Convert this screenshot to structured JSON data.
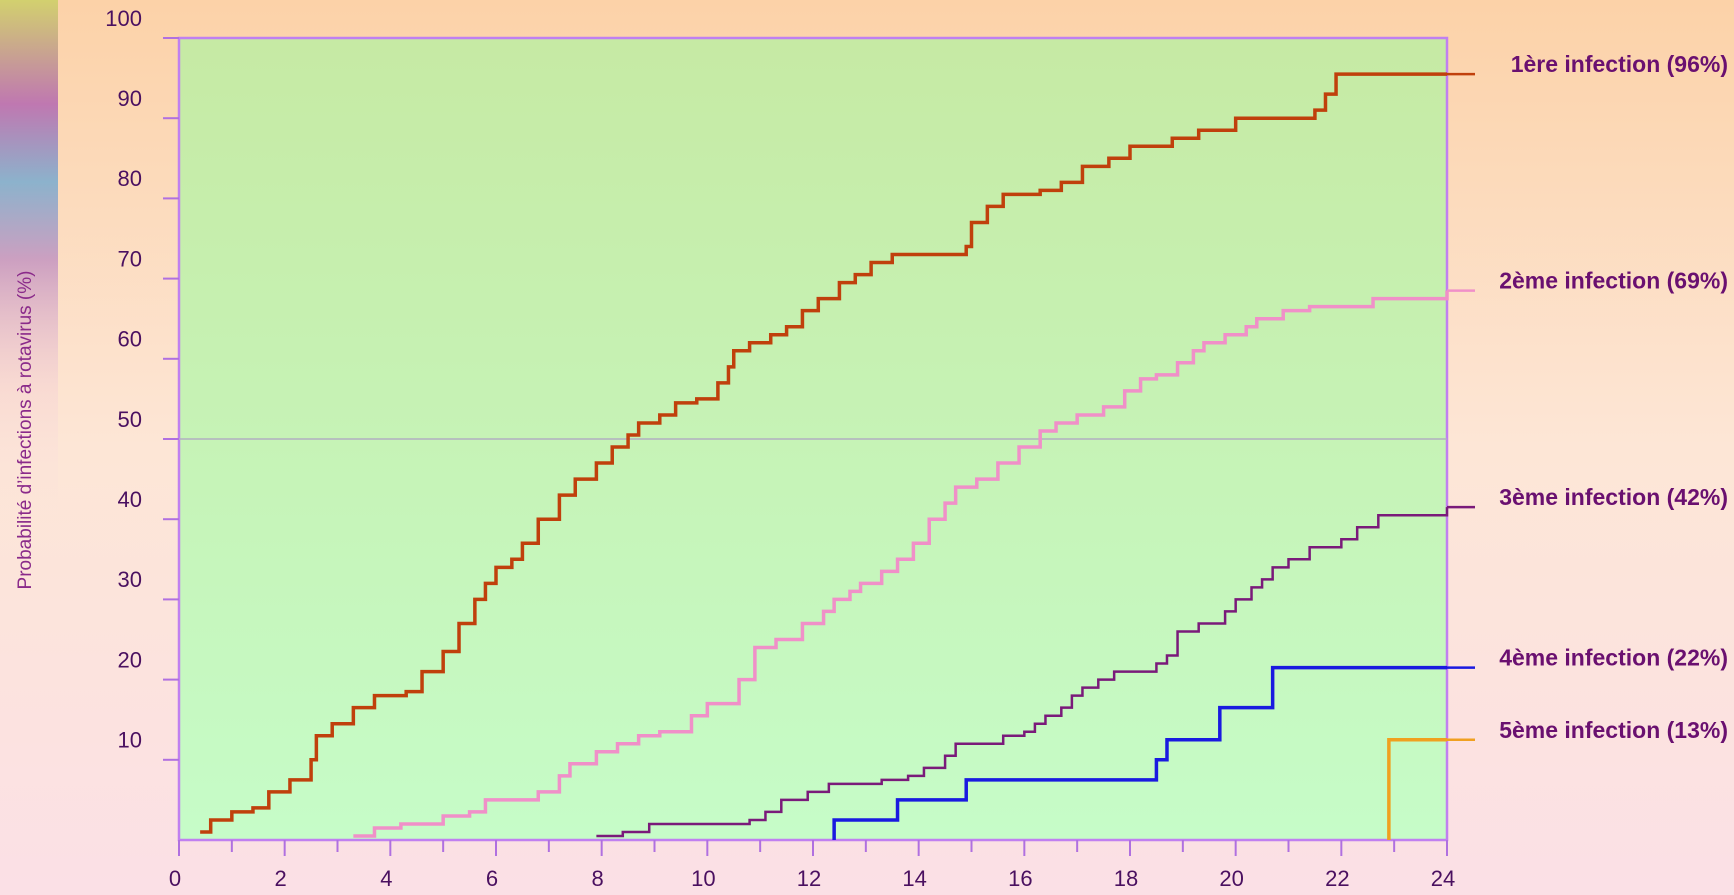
{
  "chart_data": {
    "type": "line",
    "step": true,
    "ylabel": "Probabilité d’infections à rotavirus (%)",
    "xlim": [
      0,
      24
    ],
    "xticks": [
      0,
      2,
      4,
      6,
      8,
      10,
      12,
      14,
      16,
      18,
      20,
      22,
      24
    ],
    "xticks_minor": [
      1,
      3,
      5,
      7,
      9,
      11,
      13,
      15,
      17,
      19,
      21,
      23
    ],
    "ylim": [
      0,
      100
    ],
    "yticks": [
      10,
      20,
      30,
      40,
      50,
      60,
      70,
      80,
      90,
      100
    ],
    "hline": 50,
    "series": [
      {
        "name": "1ère infection (96%)",
        "color": "#c0400c",
        "x": [
          0.4,
          0.6,
          1.0,
          1.4,
          1.7,
          2.1,
          2.5,
          2.6,
          2.9,
          3.3,
          3.7,
          4.3,
          4.6,
          5.0,
          5.3,
          5.6,
          5.8,
          6.0,
          6.3,
          6.5,
          6.8,
          7.2,
          7.5,
          7.9,
          8.2,
          8.5,
          8.7,
          9.1,
          9.4,
          9.8,
          10.2,
          10.4,
          10.5,
          10.8,
          11.2,
          11.5,
          11.8,
          12.1,
          12.5,
          12.8,
          13.1,
          13.5,
          14.3,
          14.9,
          15.0,
          15.3,
          15.6,
          16.3,
          16.7,
          17.1,
          17.6,
          18.0,
          18.8,
          19.3,
          20.0,
          21.5,
          21.7,
          21.9,
          24
        ],
        "values": [
          1,
          2.5,
          3.5,
          4,
          6,
          7.5,
          10,
          13,
          14.5,
          16.5,
          18,
          18.5,
          21,
          23.5,
          27,
          30,
          32,
          34,
          35,
          37,
          40,
          43,
          45,
          47,
          49,
          50.5,
          52,
          53,
          54.5,
          55,
          57,
          59,
          61,
          62,
          63,
          64,
          66,
          67.5,
          69.5,
          70.5,
          72,
          73,
          73,
          74,
          77,
          79,
          80.5,
          81,
          82,
          84,
          85,
          86.5,
          87.5,
          88.5,
          90,
          91,
          93,
          95.5,
          95.5
        ]
      },
      {
        "name": "2ème infection (69%)",
        "color": "#f090c8",
        "x": [
          3.3,
          3.7,
          4.2,
          5.0,
          5.5,
          5.8,
          6.8,
          7.2,
          7.4,
          7.9,
          8.3,
          8.7,
          9.1,
          9.7,
          10.0,
          10.4,
          10.6,
          10.9,
          11.3,
          11.8,
          12.2,
          12.4,
          12.7,
          12.9,
          13.3,
          13.6,
          13.9,
          14.2,
          14.5,
          14.7,
          15.1,
          15.5,
          15.9,
          16.3,
          16.6,
          17.0,
          17.5,
          17.9,
          18.2,
          18.5,
          18.9,
          19.2,
          19.4,
          19.8,
          20.2,
          20.4,
          20.9,
          21.4,
          22.6,
          24
        ],
        "values": [
          0.5,
          1.5,
          2,
          3,
          3.5,
          5,
          6,
          8,
          9.5,
          11,
          12,
          13,
          13.5,
          15.5,
          17,
          17,
          20,
          24,
          25,
          27,
          28.5,
          30,
          31,
          32,
          33.5,
          35,
          37,
          40,
          42,
          44,
          45,
          47,
          49,
          51,
          52,
          53,
          54,
          56,
          57.5,
          58,
          59.5,
          61,
          62,
          63,
          64,
          65,
          66,
          66.5,
          67.5,
          68.5
        ]
      },
      {
        "name": "3ème infection (42%)",
        "color": "#7a1a7a",
        "x": [
          7.9,
          8.4,
          8.9,
          10.8,
          11.1,
          11.4,
          11.9,
          12.3,
          13.3,
          13.8,
          14.1,
          14.5,
          14.7,
          15.6,
          16.0,
          16.2,
          16.4,
          16.7,
          16.9,
          17.1,
          17.4,
          17.7,
          18.5,
          18.7,
          18.9,
          19.3,
          19.8,
          20.0,
          20.3,
          20.5,
          20.7,
          21.0,
          21.4,
          22.0,
          22.3,
          22.7,
          24
        ],
        "values": [
          0.5,
          1,
          2,
          2.5,
          3.5,
          5,
          6,
          7,
          7.5,
          8,
          9,
          10.5,
          12,
          13,
          13.5,
          14.5,
          15.5,
          16.5,
          18,
          19,
          20,
          21,
          22,
          23,
          26,
          27,
          28.5,
          30,
          31.5,
          32.5,
          34,
          35,
          36.5,
          37.5,
          39,
          40.5,
          41.5
        ]
      },
      {
        "name": "4ème infection (22%)",
        "color": "#1a1ae0",
        "x": [
          12.4,
          12.4,
          13.6,
          14.9,
          18.5,
          18.7,
          19.7,
          20.7,
          24
        ],
        "values": [
          0,
          2.5,
          5,
          7.5,
          10,
          12.5,
          16.5,
          21.5,
          21.5
        ]
      },
      {
        "name": "5ème infection (13%)",
        "color": "#f0a020",
        "x": [
          22.9,
          22.9,
          24
        ],
        "values": [
          0,
          12.5,
          12.5
        ]
      }
    ]
  }
}
